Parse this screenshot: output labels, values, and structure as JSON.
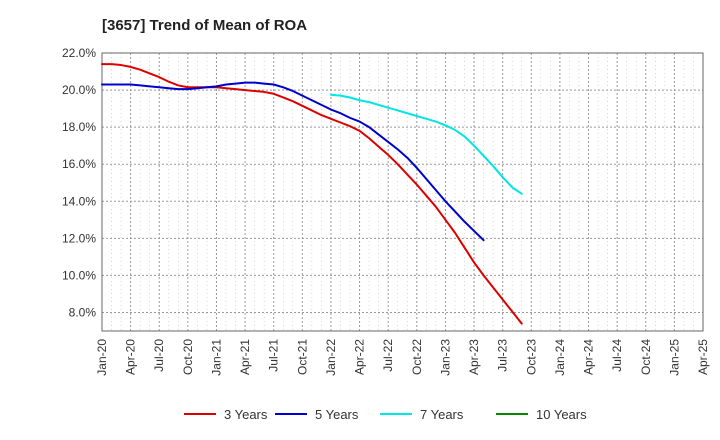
{
  "chart_data": {
    "type": "line",
    "title": "[3657]  Trend of Mean of ROA",
    "xlabel": "",
    "ylabel": "",
    "ylim": [
      7.0,
      22.0
    ],
    "y_ticks": [
      "8.0%",
      "10.0%",
      "12.0%",
      "14.0%",
      "16.0%",
      "18.0%",
      "20.0%",
      "22.0%"
    ],
    "y_tick_values": [
      8,
      10,
      12,
      14,
      16,
      18,
      20,
      22
    ],
    "x_tick_labels": [
      "Jan-20",
      "Apr-20",
      "Jul-20",
      "Oct-20",
      "Jan-21",
      "Apr-21",
      "Jul-21",
      "Oct-21",
      "Jan-22",
      "Apr-22",
      "Jul-22",
      "Oct-22",
      "Jan-23",
      "Apr-23",
      "Jul-23",
      "Oct-23",
      "Jan-24",
      "Apr-24",
      "Jul-24",
      "Oct-24",
      "Jan-25",
      "Apr-25"
    ],
    "grid": true,
    "legend_position": "bottom",
    "series": [
      {
        "name": "3 Years",
        "color": "#dd0000",
        "start_index": 0,
        "values": [
          21.4,
          21.4,
          21.35,
          21.25,
          21.1,
          20.9,
          20.7,
          20.45,
          20.25,
          20.15,
          20.15,
          20.15,
          20.15,
          20.1,
          20.05,
          20.0,
          19.95,
          19.9,
          19.8,
          19.6,
          19.4,
          19.15,
          18.9,
          18.65,
          18.45,
          18.25,
          18.05,
          17.8,
          17.4,
          16.95,
          16.5,
          16.0,
          15.45,
          14.9,
          14.3,
          13.7,
          13.0,
          12.3,
          11.5,
          10.7,
          10.0,
          9.35,
          8.7,
          8.05,
          7.4
        ]
      },
      {
        "name": "5 Years",
        "color": "#0000cc",
        "start_index": 0,
        "values": [
          20.3,
          20.3,
          20.3,
          20.3,
          20.25,
          20.2,
          20.15,
          20.1,
          20.05,
          20.05,
          20.1,
          20.15,
          20.2,
          20.3,
          20.35,
          20.4,
          20.4,
          20.35,
          20.3,
          20.15,
          19.95,
          19.7,
          19.45,
          19.2,
          18.95,
          18.75,
          18.5,
          18.3,
          18.0,
          17.6,
          17.2,
          16.8,
          16.35,
          15.8,
          15.2,
          14.6,
          14.0,
          13.45,
          12.9,
          12.4,
          11.9
        ]
      },
      {
        "name": "7 Years",
        "color": "#00e5e5",
        "start_index": 24,
        "values": [
          19.75,
          19.7,
          19.6,
          19.45,
          19.35,
          19.2,
          19.05,
          18.9,
          18.75,
          18.6,
          18.45,
          18.3,
          18.1,
          17.85,
          17.5,
          17.0,
          16.45,
          15.9,
          15.3,
          14.75,
          14.4
        ]
      },
      {
        "name": "10 Years",
        "color": "#008800",
        "start_index": 0,
        "values": []
      }
    ]
  }
}
